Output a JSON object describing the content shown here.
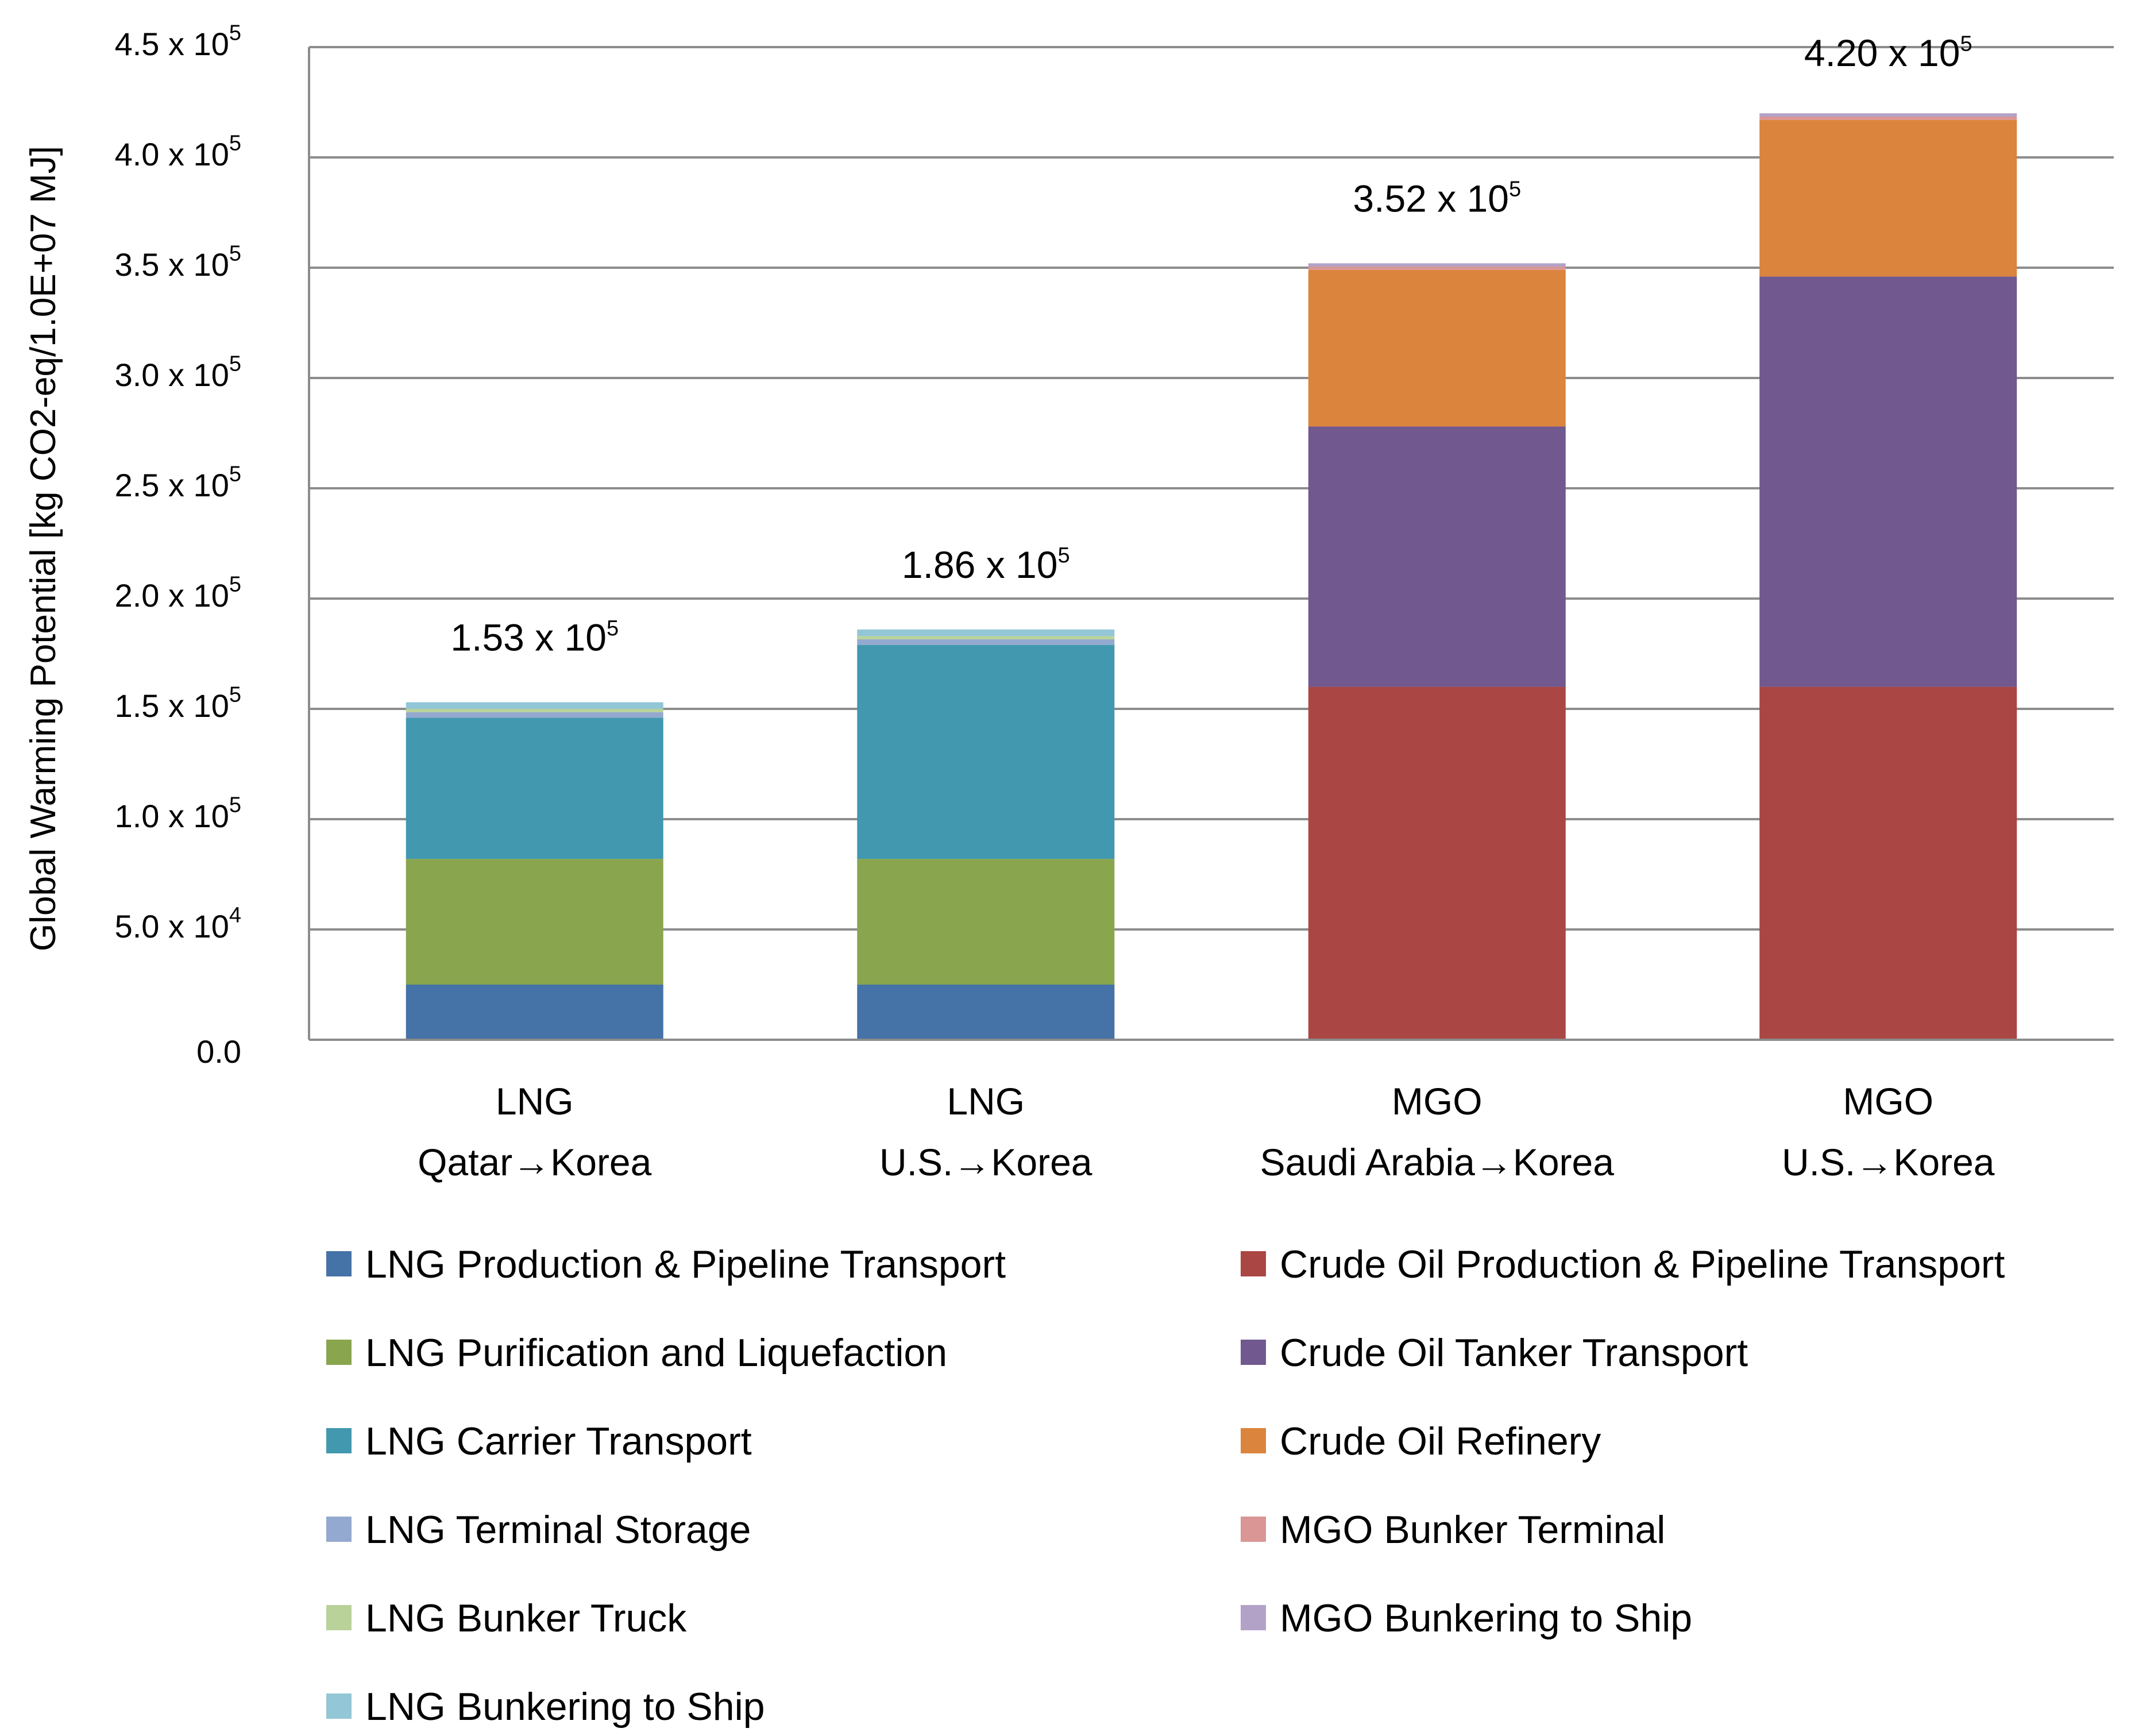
{
  "chart_data": {
    "type": "bar",
    "stacked": true,
    "ylabel": "Global Warming Potential [kg CO2-eq/1.0E+07 MJ]",
    "ylim": [
      0,
      450000
    ],
    "grid": true,
    "categories": [
      {
        "line1": "LNG",
        "line2": "Qatar→Korea"
      },
      {
        "line1": "LNG",
        "line2": "U.S.→Korea"
      },
      {
        "line1": "MGO",
        "line2": "Saudi Arabia→Korea"
      },
      {
        "line1": "MGO",
        "line2": "U.S.→Korea"
      }
    ],
    "yticks": [
      {
        "value": 0,
        "label": "0.0",
        "exp": ""
      },
      {
        "value": 50000,
        "label": "5.0 x 10",
        "exp": "4"
      },
      {
        "value": 100000,
        "label": "1.0 x 10",
        "exp": "5"
      },
      {
        "value": 150000,
        "label": "1.5 x 10",
        "exp": "5"
      },
      {
        "value": 200000,
        "label": "2.0 x 10",
        "exp": "5"
      },
      {
        "value": 250000,
        "label": "2.5 x 10",
        "exp": "5"
      },
      {
        "value": 300000,
        "label": "3.0 x 10",
        "exp": "5"
      },
      {
        "value": 350000,
        "label": "3.5 x 10",
        "exp": "5"
      },
      {
        "value": 400000,
        "label": "4.0 x 10",
        "exp": "5"
      },
      {
        "value": 450000,
        "label": "4.5 x 10",
        "exp": "5"
      }
    ],
    "totals": [
      {
        "label": "1.53 x 10",
        "exp": "5",
        "value": 153000
      },
      {
        "label": "1.86 x 10",
        "exp": "5",
        "value": 186000
      },
      {
        "label": "3.52 x 10",
        "exp": "5",
        "value": 352000
      },
      {
        "label": "4.20 x 10",
        "exp": "5",
        "value": 420000
      }
    ],
    "series": [
      {
        "name": "LNG Production & Pipeline Transport",
        "color": "#4572A7",
        "values": [
          25000,
          25000,
          0,
          0
        ]
      },
      {
        "name": "LNG Purification and Liquefaction",
        "color": "#89A54E",
        "values": [
          57000,
          57000,
          0,
          0
        ]
      },
      {
        "name": "LNG Carrier Transport",
        "color": "#4198AF",
        "values": [
          64000,
          97000,
          0,
          0
        ]
      },
      {
        "name": "LNG Terminal Storage",
        "color": "#93A9CF",
        "values": [
          2500,
          2500,
          0,
          0
        ]
      },
      {
        "name": "LNG Bunker Truck",
        "color": "#B9D29A",
        "values": [
          1500,
          1500,
          0,
          0
        ]
      },
      {
        "name": "LNG Bunkering to Ship",
        "color": "#93C6D6",
        "values": [
          3000,
          3000,
          0,
          0
        ]
      },
      {
        "name": "Crude Oil Production & Pipeline Transport",
        "color": "#AA4643",
        "values": [
          0,
          0,
          160000,
          160000
        ]
      },
      {
        "name": "Crude Oil Tanker Transport",
        "color": "#71588F",
        "values": [
          0,
          0,
          118000,
          186000
        ]
      },
      {
        "name": "Crude Oil Refinery",
        "color": "#DB843D",
        "values": [
          0,
          0,
          71000,
          71000
        ]
      },
      {
        "name": "MGO Bunker Terminal",
        "color": "#D99694",
        "values": [
          0,
          0,
          1500,
          1500
        ]
      },
      {
        "name": "MGO Bunkering to Ship",
        "color": "#B3A2C7",
        "values": [
          0,
          0,
          1500,
          1500
        ]
      }
    ],
    "legend_order": [
      0,
      6,
      1,
      7,
      2,
      8,
      3,
      9,
      4,
      10,
      5
    ]
  }
}
